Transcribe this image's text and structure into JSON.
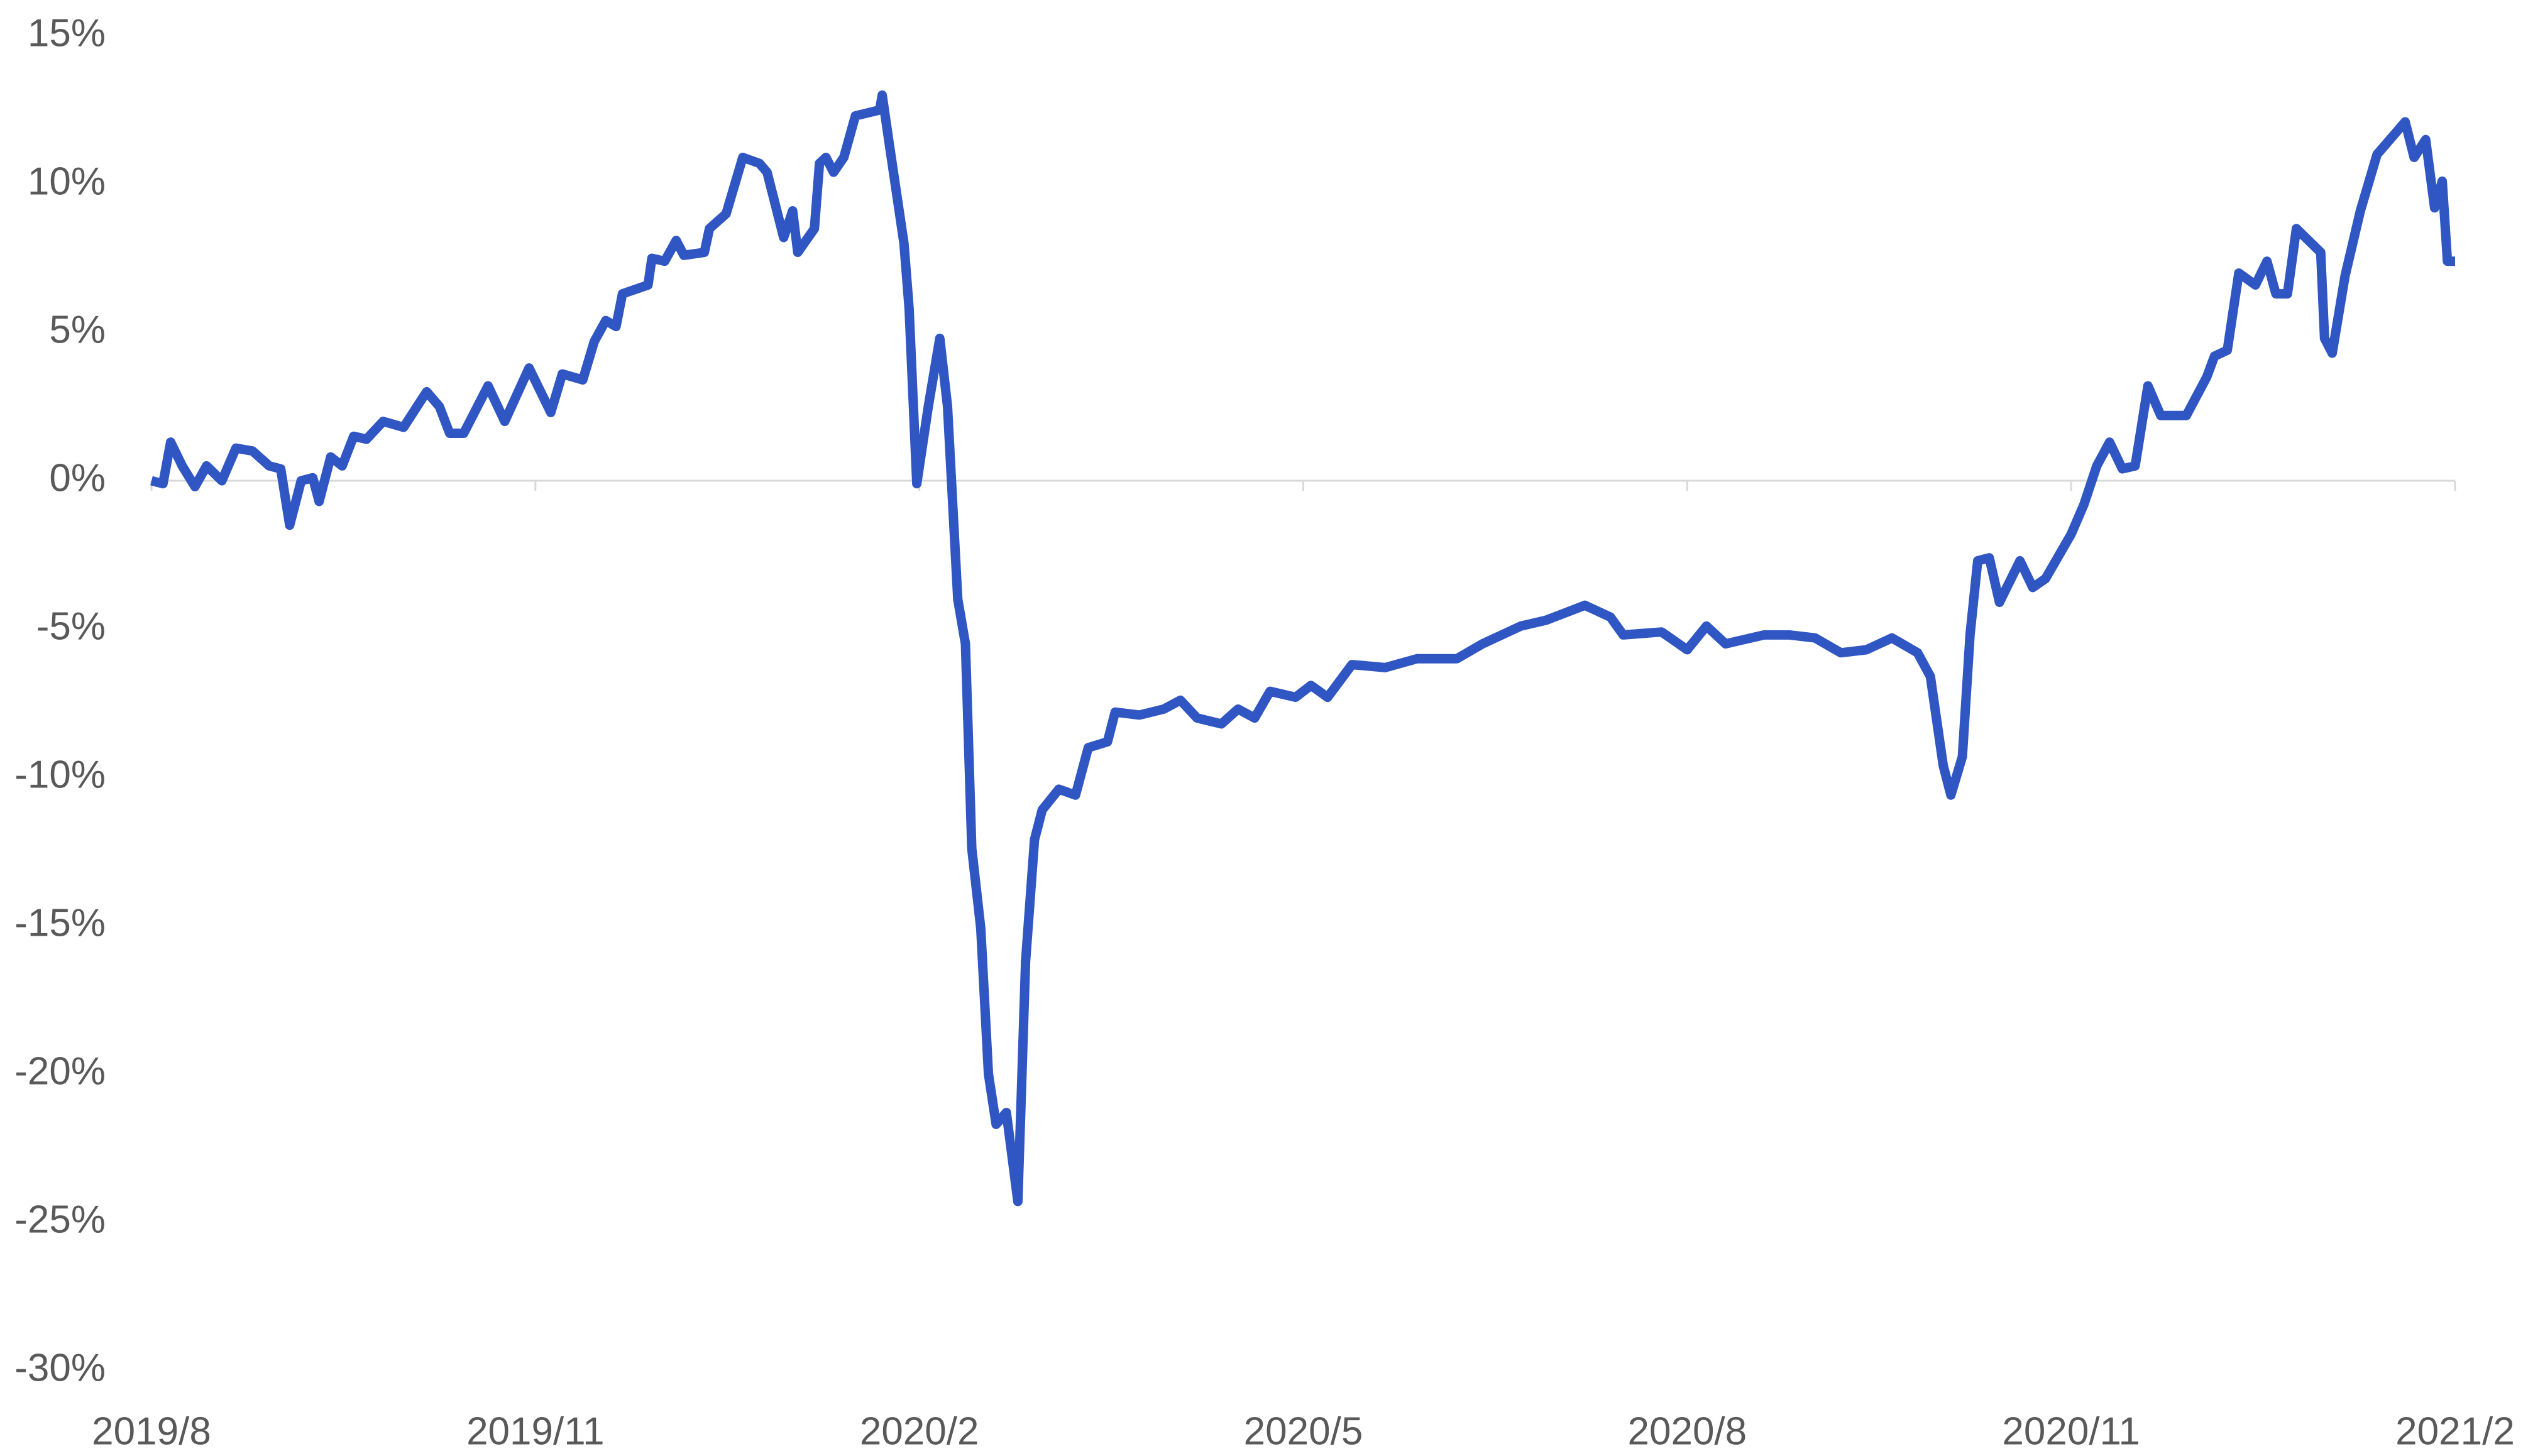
{
  "chart_data": {
    "type": "line",
    "color": "#2f56c2",
    "xlim": [
      0,
      18
    ],
    "xticks": [
      {
        "value": 0,
        "label": "2019/8"
      },
      {
        "value": 3,
        "label": "2019/11"
      },
      {
        "value": 6,
        "label": "2020/2"
      },
      {
        "value": 9,
        "label": "2020/5"
      },
      {
        "value": 12,
        "label": "2020/8"
      },
      {
        "value": 15,
        "label": "2020/11"
      },
      {
        "value": 18,
        "label": "2021/2"
      }
    ],
    "ylim": [
      -30,
      15
    ],
    "yticks": [
      {
        "value": 15,
        "label": "15%"
      },
      {
        "value": 10,
        "label": "10%"
      },
      {
        "value": 5,
        "label": "5%"
      },
      {
        "value": 0,
        "label": "0%"
      },
      {
        "value": -5,
        "label": "-5%"
      },
      {
        "value": -10,
        "label": "-10%"
      },
      {
        "value": -15,
        "label": "-15%"
      },
      {
        "value": -20,
        "label": "-20%"
      },
      {
        "value": -25,
        "label": "-25%"
      },
      {
        "value": -30,
        "label": "-30%"
      }
    ],
    "x": [
      0,
      0.09,
      0.15,
      0.24,
      0.34,
      0.43,
      0.55,
      0.66,
      0.79,
      0.92,
      1.01,
      1.08,
      1.17,
      1.26,
      1.31,
      1.4,
      1.49,
      1.58,
      1.68,
      1.81,
      1.97,
      2.15,
      2.25,
      2.33,
      2.44,
      2.63,
      2.76,
      2.95,
      3.12,
      3.21,
      3.37,
      3.46,
      3.55,
      3.63,
      3.68,
      3.88,
      3.91,
      4.01,
      4.1,
      4.16,
      4.32,
      4.36,
      4.49,
      4.62,
      4.75,
      4.81,
      4.94,
      5.01,
      5.05,
      5.18,
      5.22,
      5.27,
      5.33,
      5.41,
      5.5,
      5.69,
      5.71,
      5.76,
      5.88,
      5.92,
      5.98,
      6.07,
      6.16,
      6.22,
      6.3,
      6.36,
      6.41,
      6.48,
      6.54,
      6.6,
      6.68,
      6.77,
      6.83,
      6.9,
      6.96,
      7.09,
      7.22,
      7.32,
      7.47,
      7.53,
      7.72,
      7.91,
      8.04,
      8.17,
      8.36,
      8.49,
      8.62,
      8.74,
      8.94,
      9.06,
      9.19,
      9.38,
      9.64,
      9.89,
      10.2,
      10.4,
      10.7,
      10.9,
      11.2,
      11.4,
      11.5,
      11.8,
      12.0,
      12.15,
      12.3,
      12.6,
      12.8,
      13.0,
      13.2,
      13.4,
      13.6,
      13.8,
      13.9,
      14.0,
      14.06,
      14.15,
      14.21,
      14.27,
      14.36,
      14.44,
      14.6,
      14.7,
      14.8,
      15.0,
      15.1,
      15.2,
      15.3,
      15.4,
      15.5,
      15.6,
      15.7,
      15.9,
      16.06,
      16.12,
      16.22,
      16.31,
      16.44,
      16.53,
      16.6,
      16.69,
      16.76,
      16.95,
      16.98,
      17.04,
      17.14,
      17.26,
      17.39,
      17.61,
      17.68,
      17.77,
      17.84,
      17.9,
      17.94,
      18.0
    ],
    "values": [
      0,
      -0.1,
      1.3,
      0.5,
      -0.2,
      0.5,
      0,
      1.1,
      1.0,
      0.5,
      0.4,
      -1.5,
      0,
      0.1,
      -0.7,
      0.8,
      0.5,
      1.5,
      1.4,
      2.0,
      1.8,
      3.0,
      2.5,
      1.6,
      1.6,
      3.2,
      2.0,
      3.8,
      2.3,
      3.6,
      3.4,
      4.7,
      5.4,
      5.2,
      6.3,
      6.6,
      7.5,
      7.4,
      8.1,
      7.6,
      7.7,
      8.5,
      9.0,
      10.9,
      10.7,
      10.4,
      8.2,
      9.1,
      7.7,
      8.5,
      10.7,
      10.9,
      10.4,
      10.9,
      12.3,
      12.5,
      13.0,
      11.5,
      8.0,
      5.8,
      -0.1,
      2.5,
      4.8,
      2.5,
      -4.0,
      -5.5,
      -12.4,
      -15.1,
      -20.0,
      -21.7,
      -21.3,
      -24.3,
      -16.2,
      -12.1,
      -11.1,
      -10.4,
      -10.6,
      -9.0,
      -8.8,
      -7.8,
      -7.9,
      -7.7,
      -7.4,
      -8.0,
      -8.2,
      -7.7,
      -8.0,
      -7.1,
      -7.3,
      -6.9,
      -7.3,
      -6.2,
      -6.3,
      -6.0,
      -6.0,
      -5.5,
      -4.9,
      -4.7,
      -4.2,
      -4.6,
      -5.2,
      -5.1,
      -5.7,
      -4.9,
      -5.5,
      -5.2,
      -5.2,
      -5.3,
      -5.8,
      -5.7,
      -5.3,
      -5.8,
      -6.6,
      -9.6,
      -10.6,
      -9.3,
      -5.2,
      -2.7,
      -2.6,
      -4.1,
      -2.7,
      -3.6,
      -3.3,
      -1.8,
      -0.8,
      0.5,
      1.3,
      0.4,
      0.5,
      3.2,
      2.2,
      2.2,
      3.5,
      4.2,
      4.4,
      7.0,
      6.6,
      7.4,
      6.3,
      6.3,
      8.5,
      7.7,
      4.8,
      4.3,
      6.9,
      9.1,
      11.0,
      12.1,
      10.9,
      11.5,
      9.2,
      10.1,
      7.4,
      7.4
    ]
  }
}
